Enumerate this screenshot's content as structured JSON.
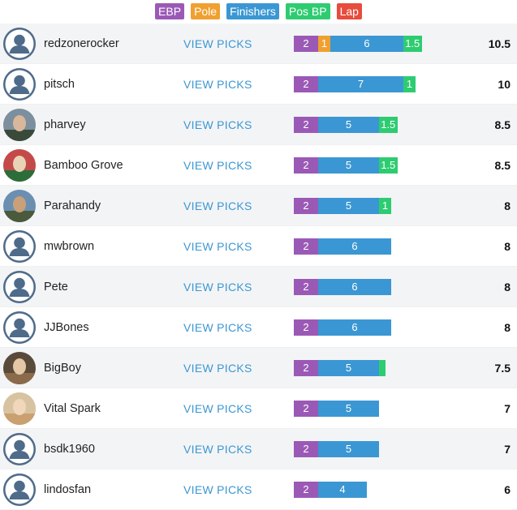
{
  "legend": {
    "ebp": {
      "label": "EBP",
      "color": "#9b59b6"
    },
    "pole": {
      "label": "Pole",
      "color": "#f0a030"
    },
    "finishers": {
      "label": "Finishers",
      "color": "#3b97d3"
    },
    "pos_bp": {
      "label": "Pos BP",
      "color": "#2ecc71"
    },
    "lap": {
      "label": "Lap",
      "color": "#e74c3c"
    }
  },
  "view_picks_label": "VIEW PICKS",
  "rows": [
    {
      "username": "redzonerocker",
      "avatar": "default-avatar",
      "ebp": 2,
      "pole": 1,
      "finishers": 6,
      "pos_bp": 1.5,
      "lap": 0,
      "total": "10.5"
    },
    {
      "username": "pitsch",
      "avatar": "default-avatar",
      "ebp": 2,
      "pole": 0,
      "finishers": 7,
      "pos_bp": 1,
      "lap": 0,
      "total": "10"
    },
    {
      "username": "pharvey",
      "avatar": "photo-avatar",
      "ebp": 2,
      "pole": 0,
      "finishers": 5,
      "pos_bp": 1.5,
      "lap": 0,
      "total": "8.5"
    },
    {
      "username": "Bamboo Grove",
      "avatar": "photo-avatar",
      "ebp": 2,
      "pole": 0,
      "finishers": 5,
      "pos_bp": 1.5,
      "lap": 0,
      "total": "8.5"
    },
    {
      "username": "Parahandy",
      "avatar": "photo-avatar",
      "ebp": 2,
      "pole": 0,
      "finishers": 5,
      "pos_bp": 1,
      "lap": 0,
      "total": "8"
    },
    {
      "username": "mwbrown",
      "avatar": "default-avatar",
      "ebp": 2,
      "pole": 0,
      "finishers": 6,
      "pos_bp": 0,
      "lap": 0,
      "total": "8"
    },
    {
      "username": "Pete",
      "avatar": "default-avatar",
      "ebp": 2,
      "pole": 0,
      "finishers": 6,
      "pos_bp": 0,
      "lap": 0,
      "total": "8"
    },
    {
      "username": "JJBones",
      "avatar": "default-avatar",
      "ebp": 2,
      "pole": 0,
      "finishers": 6,
      "pos_bp": 0,
      "lap": 0,
      "total": "8"
    },
    {
      "username": "BigBoy",
      "avatar": "photo-avatar",
      "ebp": 2,
      "pole": 0,
      "finishers": 5,
      "pos_bp": 0.5,
      "lap": 0,
      "total": "7.5"
    },
    {
      "username": "Vital Spark",
      "avatar": "photo-avatar",
      "ebp": 2,
      "pole": 0,
      "finishers": 5,
      "pos_bp": 0,
      "lap": 0,
      "total": "7"
    },
    {
      "username": "bsdk1960",
      "avatar": "default-avatar",
      "ebp": 2,
      "pole": 0,
      "finishers": 5,
      "pos_bp": 0,
      "lap": 0,
      "total": "7"
    },
    {
      "username": "lindosfan",
      "avatar": "default-avatar",
      "ebp": 2,
      "pole": 0,
      "finishers": 4,
      "pos_bp": 0,
      "lap": 0,
      "total": "6"
    }
  ]
}
